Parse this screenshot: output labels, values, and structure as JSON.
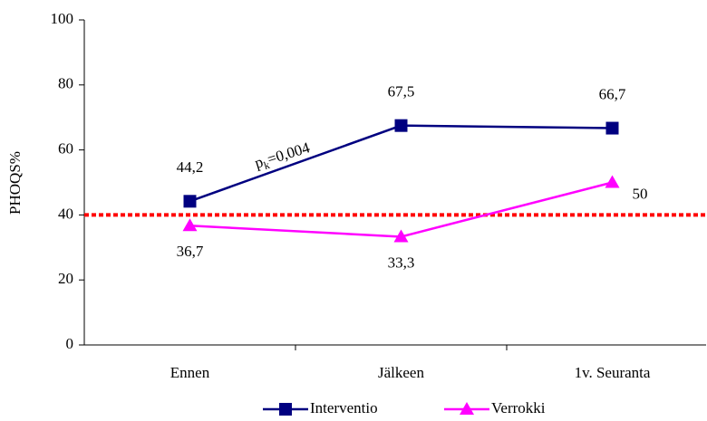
{
  "chart_data": {
    "type": "line",
    "y_label": "PHOQS%",
    "categories": [
      "Ennen",
      "Jälkeen",
      "1v. Seuranta"
    ],
    "series": [
      {
        "name": "Interventio",
        "color": "#000080",
        "marker": "square",
        "values": [
          44.2,
          67.5,
          66.7
        ],
        "value_labels": [
          "44,2",
          "67,5",
          "66,7"
        ]
      },
      {
        "name": "Verrokki",
        "color": "#ff00ff",
        "marker": "triangle",
        "values": [
          36.7,
          33.3,
          50
        ],
        "value_labels": [
          "36,7",
          "33,3",
          "50"
        ]
      }
    ],
    "annotation": {
      "base": "p",
      "sub": "k",
      "rest": "=0,004"
    },
    "reference_line": {
      "value": 40,
      "color": "#ff0000"
    },
    "ylim": [
      0,
      100
    ],
    "yticks": [
      0,
      20,
      40,
      60,
      80,
      100
    ],
    "grid": false,
    "legend": "bottom"
  }
}
